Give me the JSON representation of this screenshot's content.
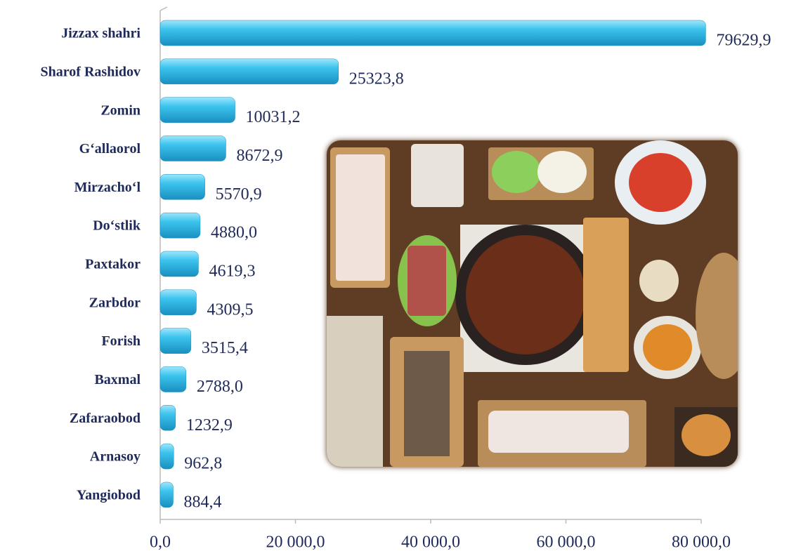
{
  "chart_data": {
    "type": "bar",
    "orientation": "horizontal",
    "categories": [
      "Jizzax shahri",
      "Sharof Rashidov",
      "Zomin",
      "G‘allaorol",
      "Mirzacho‘l",
      "Do‘stlik",
      "Paxtakor",
      "Zarbdor",
      "Forish",
      "Baxmal",
      "Zafaraobod",
      "Arnasoy",
      "Yangiobod"
    ],
    "values": [
      79629.9,
      25323.8,
      10031.2,
      8672.9,
      5570.9,
      4880.0,
      4619.3,
      4309.5,
      3515.4,
      2788.0,
      1232.9,
      962.8,
      884.4
    ],
    "value_labels": [
      "79629,9",
      "25323,8",
      "10031,2",
      "8672,9",
      "5570,9",
      "4880,0",
      "4619,3",
      "4309,5",
      "3515,4",
      "2788,0",
      "1232,9",
      "962,8",
      "884,4"
    ],
    "color": "#3cc4ee",
    "xlim": [
      0,
      80000
    ],
    "xticks": [
      {
        "value": 0,
        "label": "0,0"
      },
      {
        "value": 20000,
        "label": "20 000,0"
      },
      {
        "value": 40000,
        "label": "40 000,0"
      },
      {
        "value": 60000,
        "label": "60 000,0"
      },
      {
        "value": 80000,
        "label": "80 000,0"
      }
    ],
    "grid": false
  }
}
